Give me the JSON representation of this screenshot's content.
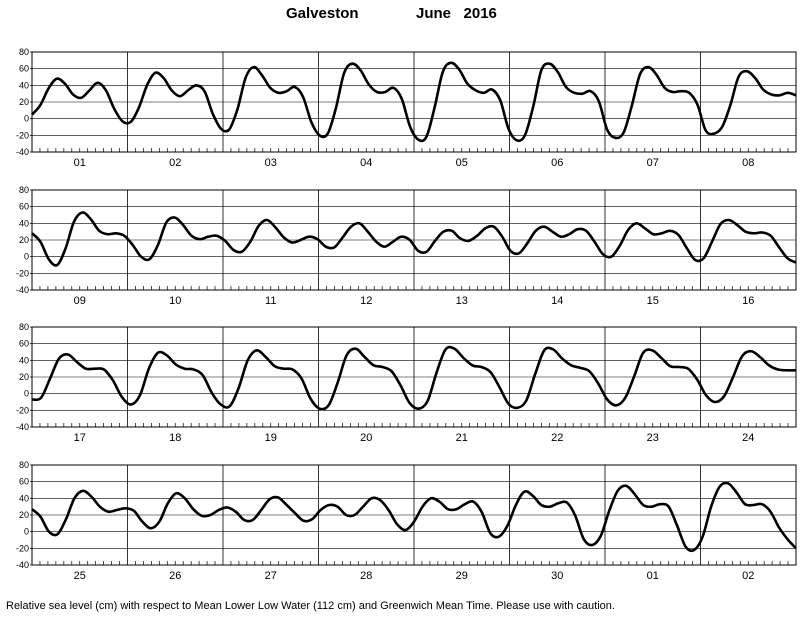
{
  "title": {
    "station": "Galveston",
    "month_year": "June   2016"
  },
  "footnote": "Relative sea level (cm) with respect to Mean Lower Low Water (112 cm) and Greenwich Mean Time. Please use with caution.",
  "chart_data": [
    {
      "type": "line",
      "title": "",
      "ylim": [
        -40,
        80
      ],
      "yticks": [
        -40,
        -20,
        0,
        20,
        40,
        60,
        80
      ],
      "grid": true,
      "day_labels": [
        "01",
        "02",
        "03",
        "04",
        "05",
        "06",
        "07",
        "08"
      ],
      "series": [
        {
          "values": [
            5,
            16,
            36,
            48,
            42,
            29,
            25,
            34,
            43,
            34,
            12,
            -3,
            -4,
            13,
            40,
            55,
            49,
            34,
            27,
            34,
            40,
            33,
            6,
            -12,
            -13,
            11,
            49,
            62,
            52,
            37,
            31,
            33,
            38,
            26,
            -4,
            -20,
            -18,
            13,
            55,
            66,
            58,
            41,
            32,
            32,
            37,
            24,
            -9,
            -25,
            -22,
            13,
            56,
            67,
            59,
            42,
            34,
            31,
            35,
            22,
            -12,
            -26,
            -20,
            14,
            58,
            66,
            56,
            38,
            31,
            30,
            33,
            21,
            -13,
            -23,
            -17,
            15,
            53,
            62,
            53,
            37,
            32,
            33,
            31,
            17,
            -14,
            -18,
            -10,
            16,
            50,
            57,
            49,
            35,
            29,
            28,
            31,
            28
          ]
        }
      ]
    },
    {
      "type": "line",
      "title": "",
      "ylim": [
        -40,
        80
      ],
      "yticks": [
        -40,
        -20,
        0,
        20,
        40,
        60,
        80
      ],
      "grid": true,
      "day_labels": [
        "09",
        "10",
        "11",
        "12",
        "13",
        "14",
        "15",
        "16"
      ],
      "series": [
        {
          "values": [
            28,
            18,
            -3,
            -10,
            10,
            42,
            53,
            45,
            31,
            27,
            28,
            25,
            14,
            0,
            -3,
            14,
            41,
            47,
            38,
            25,
            21,
            24,
            25,
            19,
            8,
            6,
            18,
            37,
            44,
            35,
            23,
            17,
            20,
            24,
            21,
            12,
            11,
            23,
            36,
            40,
            30,
            18,
            12,
            18,
            24,
            20,
            7,
            6,
            19,
            30,
            31,
            22,
            19,
            25,
            34,
            36,
            24,
            7,
            4,
            16,
            31,
            36,
            30,
            24,
            27,
            33,
            31,
            18,
            3,
            0,
            13,
            32,
            40,
            34,
            27,
            28,
            31,
            26,
            10,
            -4,
            -2,
            18,
            39,
            44,
            38,
            30,
            28,
            29,
            25,
            11,
            -2,
            -7
          ]
        }
      ]
    },
    {
      "type": "line",
      "title": "",
      "ylim": [
        -40,
        80
      ],
      "yticks": [
        -40,
        -20,
        0,
        20,
        40,
        60,
        80
      ],
      "grid": true,
      "day_labels": [
        "17",
        "18",
        "19",
        "20",
        "21",
        "22",
        "23",
        "24"
      ],
      "series": [
        {
          "values": [
            -7,
            -5,
            18,
            42,
            47,
            38,
            30,
            30,
            29,
            16,
            -4,
            -13,
            -2,
            30,
            49,
            46,
            35,
            30,
            29,
            22,
            1,
            -13,
            -15,
            7,
            40,
            52,
            44,
            33,
            30,
            29,
            18,
            -6,
            -18,
            -14,
            13,
            46,
            54,
            44,
            34,
            32,
            27,
            10,
            -11,
            -18,
            -9,
            25,
            53,
            54,
            43,
            34,
            32,
            26,
            8,
            -12,
            -17,
            -8,
            24,
            52,
            53,
            42,
            34,
            31,
            27,
            12,
            -7,
            -14,
            -5,
            21,
            49,
            52,
            43,
            33,
            32,
            30,
            17,
            -2,
            -10,
            -3,
            20,
            45,
            51,
            44,
            34,
            29,
            28,
            28
          ]
        }
      ]
    },
    {
      "type": "line",
      "title": "",
      "ylim": [
        -40,
        80
      ],
      "yticks": [
        -40,
        -20,
        0,
        20,
        40,
        60,
        80
      ],
      "grid": true,
      "day_labels": [
        "25",
        "26",
        "27",
        "28",
        "29",
        "30",
        "01",
        "02"
      ],
      "series": [
        {
          "values": [
            27,
            18,
            0,
            -3,
            15,
            40,
            49,
            42,
            30,
            24,
            26,
            28,
            25,
            12,
            4,
            12,
            34,
            46,
            40,
            27,
            19,
            20,
            26,
            29,
            24,
            14,
            14,
            26,
            39,
            41,
            32,
            22,
            13,
            15,
            26,
            32,
            30,
            20,
            20,
            30,
            40,
            38,
            26,
            9,
            2,
            12,
            30,
            40,
            36,
            27,
            27,
            33,
            36,
            23,
            -2,
            -6,
            7,
            32,
            48,
            43,
            32,
            30,
            34,
            35,
            19,
            -9,
            -16,
            -5,
            25,
            49,
            55,
            45,
            32,
            30,
            33,
            30,
            7,
            -18,
            -22,
            -6,
            30,
            54,
            58,
            47,
            33,
            32,
            33,
            24,
            5,
            -9,
            -20
          ]
        }
      ]
    }
  ]
}
